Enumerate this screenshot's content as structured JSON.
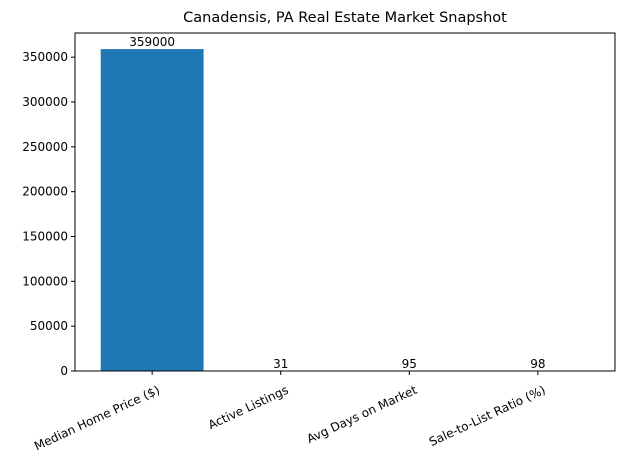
{
  "chart_data": {
    "type": "bar",
    "title": "Canadensis, PA Real Estate Market Snapshot",
    "categories": [
      "Median Home Price ($)",
      "Active Listings",
      "Avg Days on Market",
      "Sale-to-List Ratio (%)"
    ],
    "values": [
      359000,
      31,
      95,
      98
    ],
    "color": "#1f77b4",
    "ylim": [
      0,
      376950
    ],
    "yticks": [
      0,
      50000,
      100000,
      150000,
      200000,
      250000,
      300000,
      350000
    ],
    "grid": false
  }
}
